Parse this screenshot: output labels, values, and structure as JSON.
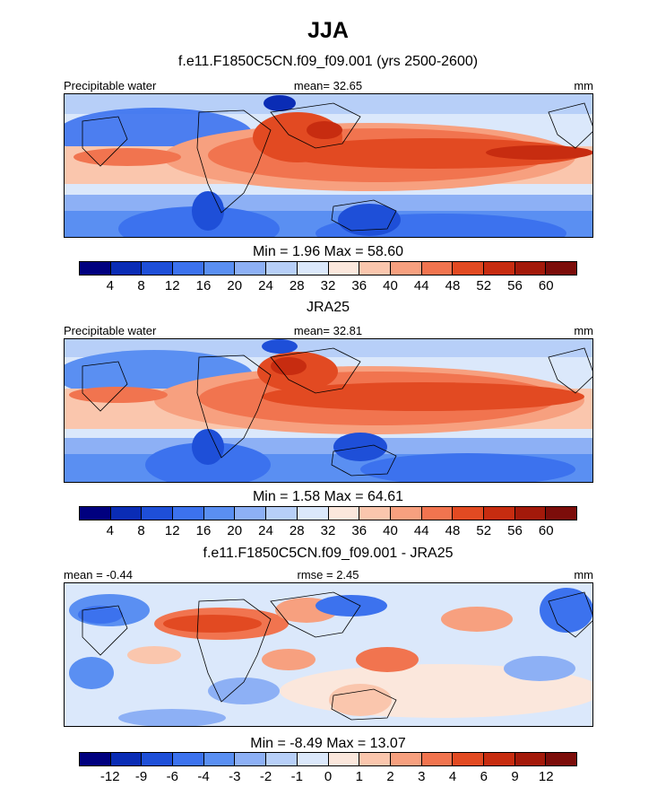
{
  "chart_data": [
    {
      "type": "heatmap",
      "figure_title": "JJA",
      "title": "f.e11.F1850C5CN.f09_f09.001 (yrs 2500-2600)",
      "left_label": "Precipitable water",
      "center_label": "mean=  32.65",
      "units": "mm",
      "min": 1.96,
      "max": 58.6,
      "minmax_text": "Min =   1.96 Max =  58.60",
      "levels": [
        "4",
        "8",
        "12",
        "16",
        "20",
        "24",
        "28",
        "32",
        "36",
        "40",
        "44",
        "48",
        "52",
        "56",
        "60"
      ],
      "colors": [
        "#00007f",
        "#0a2cb5",
        "#1e4fd8",
        "#3c72ee",
        "#5a8ff2",
        "#8db0f5",
        "#b7cff8",
        "#dbe8fb",
        "#fbe7dc",
        "#fac6ad",
        "#f7a07f",
        "#f1744f",
        "#e24a22",
        "#c72c10",
        "#a3190a",
        "#7c0d0a"
      ]
    },
    {
      "type": "heatmap",
      "title": "JRA25",
      "left_label": "Precipitable water",
      "center_label": "mean=  32.81",
      "units": "mm",
      "min": 1.58,
      "max": 64.61,
      "minmax_text": "Min =   1.58 Max =  64.61",
      "levels": [
        "4",
        "8",
        "12",
        "16",
        "20",
        "24",
        "28",
        "32",
        "36",
        "40",
        "44",
        "48",
        "52",
        "56",
        "60"
      ],
      "colors": [
        "#00007f",
        "#0a2cb5",
        "#1e4fd8",
        "#3c72ee",
        "#5a8ff2",
        "#8db0f5",
        "#b7cff8",
        "#dbe8fb",
        "#fbe7dc",
        "#fac6ad",
        "#f7a07f",
        "#f1744f",
        "#e24a22",
        "#c72c10",
        "#a3190a",
        "#7c0d0a"
      ]
    },
    {
      "type": "heatmap",
      "title": "f.e11.F1850C5CN.f09_f09.001 - JRA25",
      "left_label": "mean =  -0.44",
      "center_label": "rmse =   2.45",
      "units": "mm",
      "min": -8.49,
      "max": 13.07,
      "minmax_text": "Min =  -8.49 Max =  13.07",
      "levels": [
        "-12",
        "-9",
        "-6",
        "-4",
        "-3",
        "-2",
        "-1",
        "0",
        "1",
        "2",
        "3",
        "4",
        "6",
        "9",
        "12"
      ],
      "colors": [
        "#00007f",
        "#0a2cb5",
        "#1e4fd8",
        "#3c72ee",
        "#5a8ff2",
        "#8db0f5",
        "#b7cff8",
        "#dbe8fb",
        "#fbe7dc",
        "#fac6ad",
        "#f7a07f",
        "#f1744f",
        "#e24a22",
        "#c72c10",
        "#a3190a",
        "#7c0d0a"
      ]
    }
  ]
}
